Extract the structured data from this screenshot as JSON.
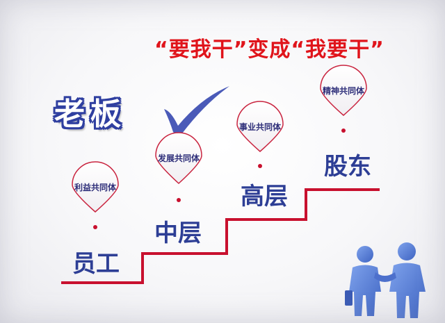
{
  "title": "“要我干”变成“我要干”",
  "boss_label": "老板",
  "levels": [
    {
      "label": "员工",
      "pin_text": "利益共同体"
    },
    {
      "label": "中层",
      "pin_text": "发展共同体"
    },
    {
      "label": "高层",
      "pin_text": "事业共同体"
    },
    {
      "label": "股东",
      "pin_text": "精神共同体"
    }
  ],
  "colors": {
    "title_red": "#e0141b",
    "stair_red": "#c8102e",
    "level_blue": "#2d3e95",
    "check_blue": "#4a5ab8",
    "pin_stroke": "#c9243f",
    "people_blue": "#5a7fd6"
  },
  "icons": [
    "checkmark-icon",
    "map-pin-icon",
    "business-people-icon"
  ]
}
